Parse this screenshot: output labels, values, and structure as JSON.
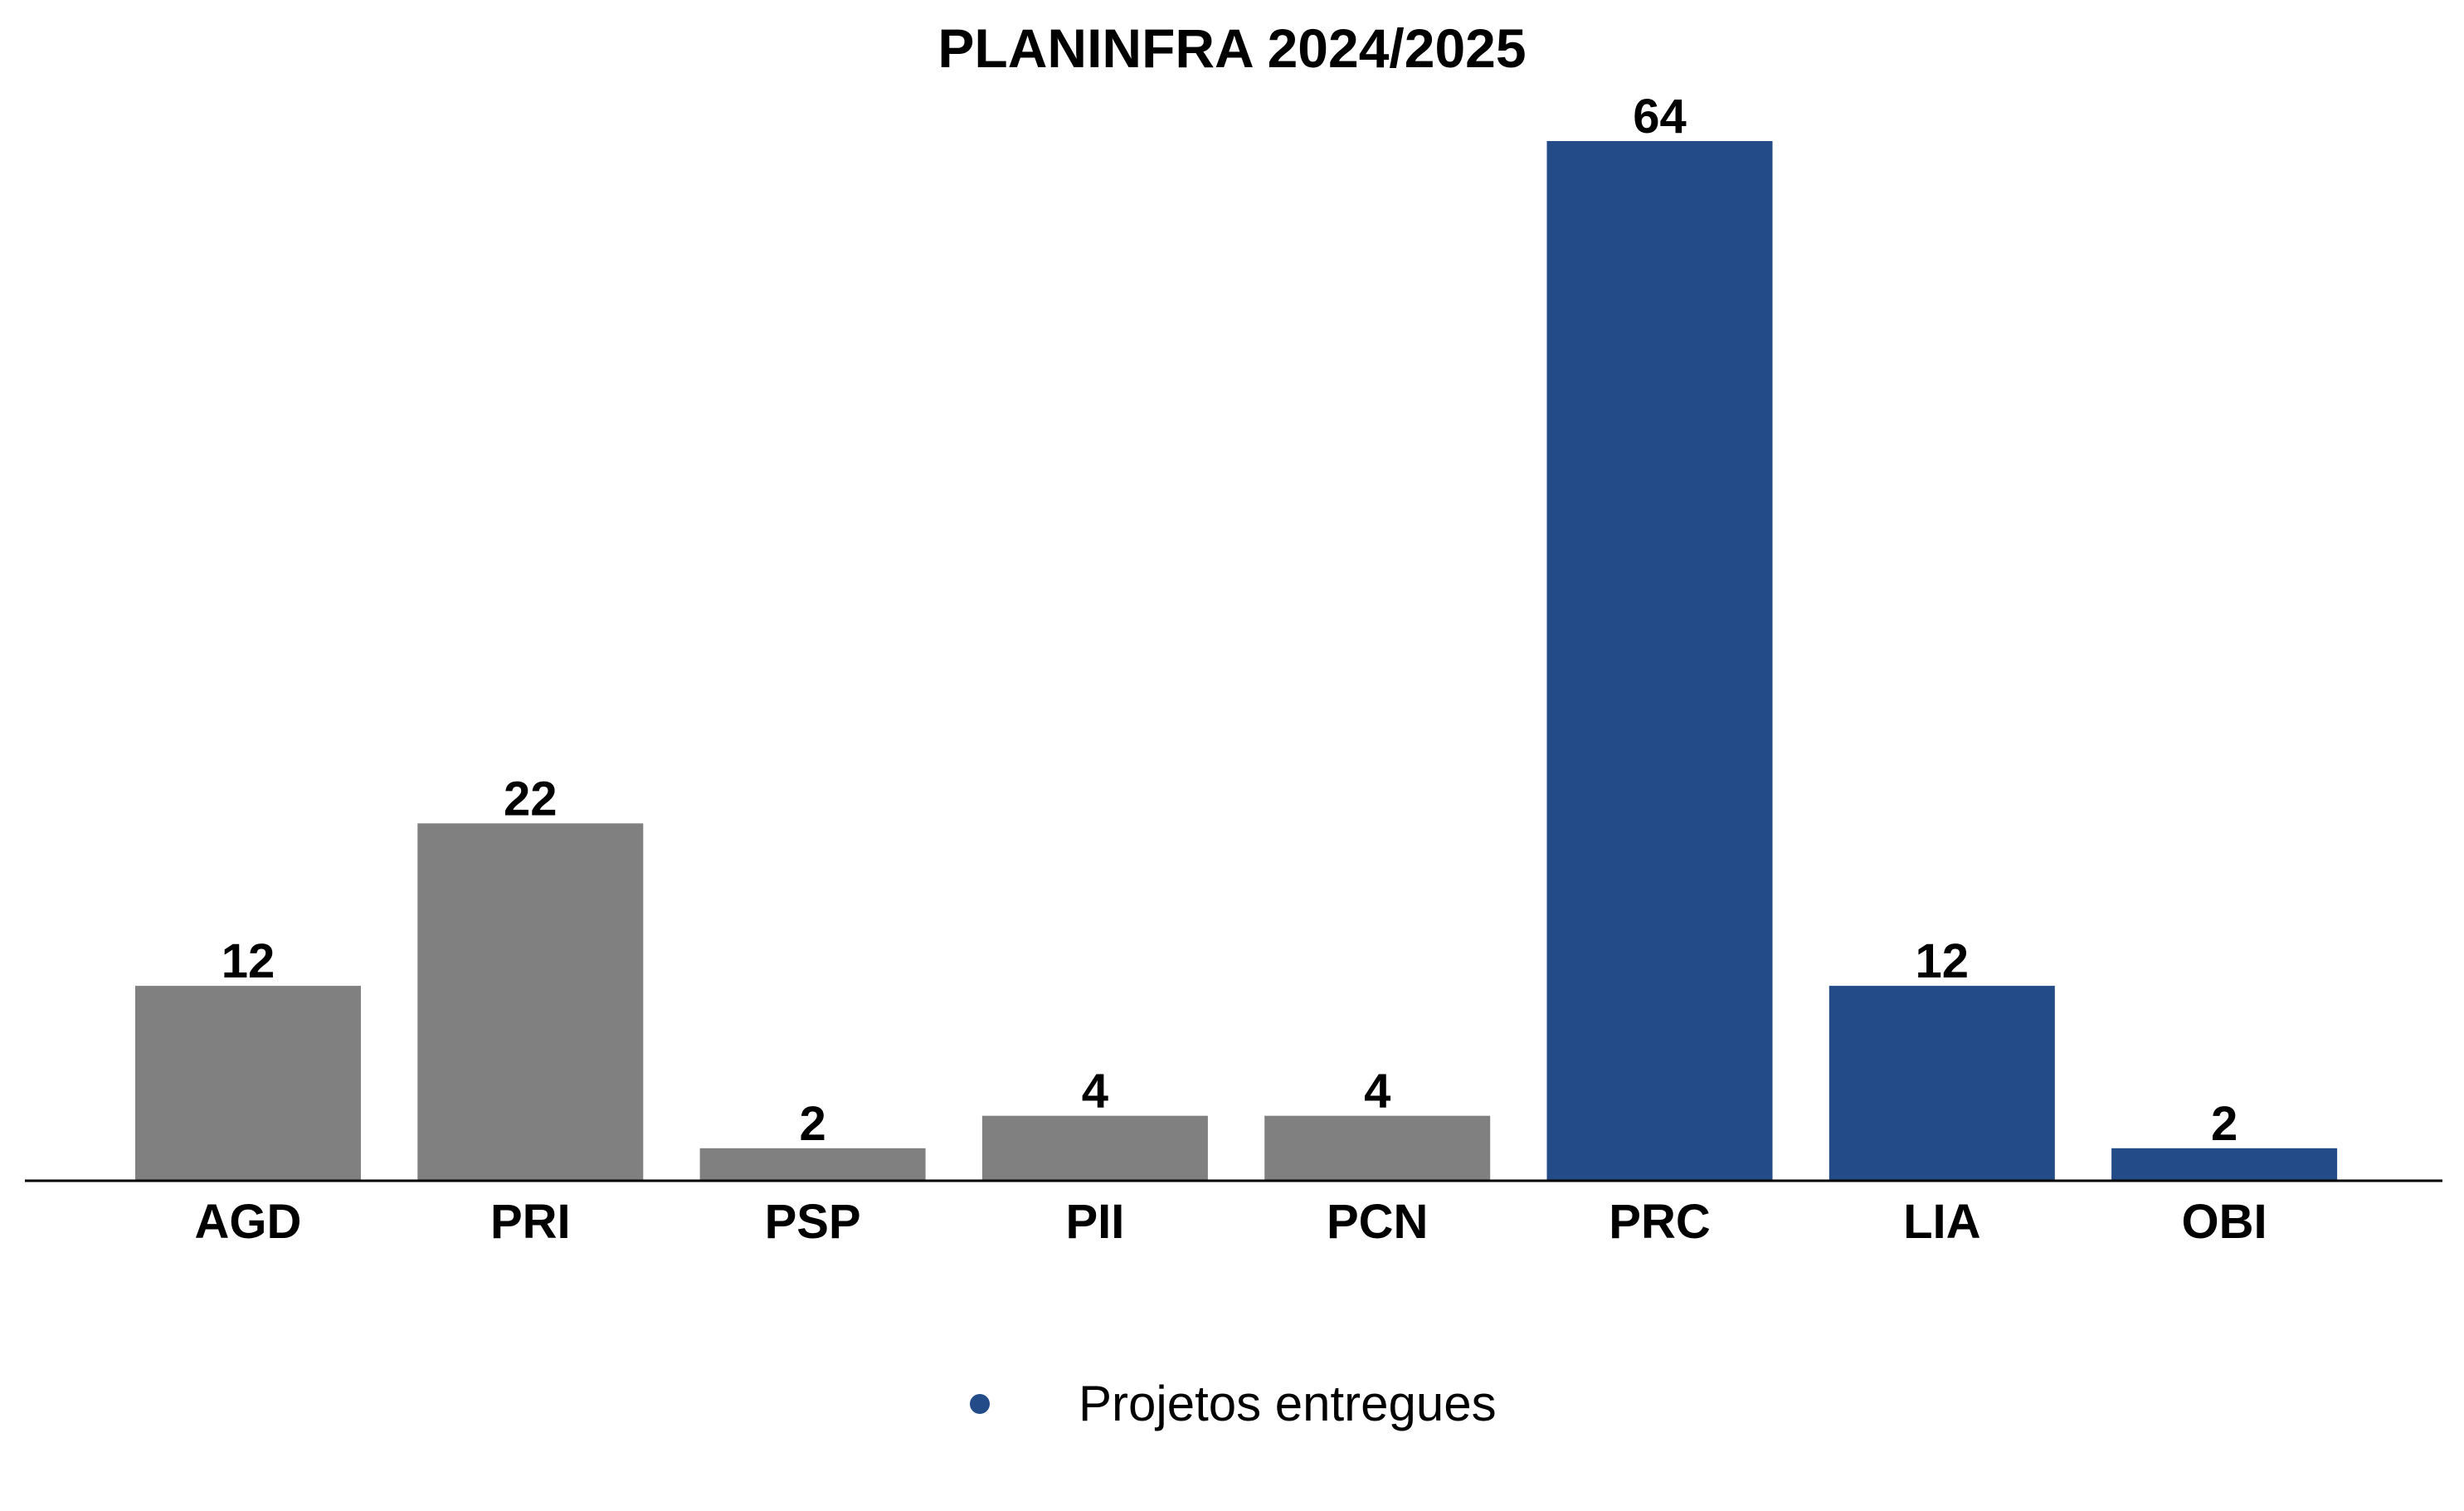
{
  "chart_data": {
    "type": "bar",
    "title": "PLANINFRA 2024/2025",
    "xlabel": "",
    "ylabel": "",
    "categories": [
      "AGD",
      "PRI",
      "PSP",
      "PII",
      "PCN",
      "PRC",
      "LIA",
      "OBI"
    ],
    "values": [
      12,
      22,
      2,
      4,
      4,
      64,
      12,
      2
    ],
    "highlighted": [
      false,
      false,
      false,
      false,
      false,
      true,
      true,
      true
    ],
    "ylim": [
      0,
      64
    ],
    "grid": false,
    "legend": {
      "placement": "bottom-center",
      "entries": [
        {
          "label": "Projetos entregues",
          "color": "#234B87"
        }
      ]
    },
    "colors": {
      "default_bar": "#808080",
      "highlight_bar": "#234B87",
      "axis": "#000000",
      "text": "#000000"
    }
  }
}
